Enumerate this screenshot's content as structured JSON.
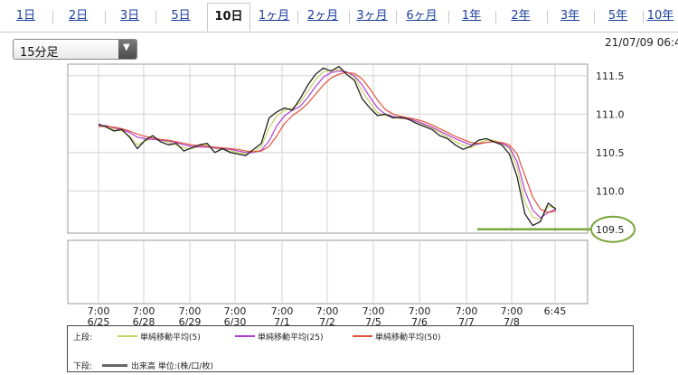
{
  "tabs": [
    "1日",
    "2日",
    "3日",
    "5日",
    "10日",
    "1ヶ月",
    "2ヶ月",
    "3ヶ月",
    "6ヶ月",
    "1年",
    "2年",
    "3年",
    "5年",
    "10年"
  ],
  "active_tab": "10日",
  "interval": {
    "selected": "15分足"
  },
  "datetime": "21/07/09 06:4",
  "colors": {
    "ma5": "#c8d264",
    "ma25": "#b13ed2",
    "ma50": "#e0533a",
    "volume": "#666666",
    "highlight": "#7aa63c",
    "price": "#222222"
  },
  "legend": {
    "upper_label": "上段:",
    "lower_label": "下段:",
    "ma5": "単純移動平均(5)",
    "ma25": "単純移動平均(25)",
    "ma50": "単純移動平均(50)",
    "volume": "出来高 単位:(株/口/枚)"
  },
  "chart_data": {
    "type": "line",
    "y_ticks": [
      "111.5",
      "111.0",
      "110.5",
      "110.0",
      "109.5"
    ],
    "ylim": [
      109.45,
      111.65
    ],
    "highlighted_value": "109.5",
    "x_ticks": [
      {
        "time": "7:00",
        "date": "6/25"
      },
      {
        "time": "7:00",
        "date": "6/28"
      },
      {
        "time": "7:00",
        "date": "6/29"
      },
      {
        "time": "7:00",
        "date": "6/30"
      },
      {
        "time": "7:00",
        "date": "7/1"
      },
      {
        "time": "7:00",
        "date": "7/2"
      },
      {
        "time": "7:00",
        "date": "7/5"
      },
      {
        "time": "7:00",
        "date": "7/6"
      },
      {
        "time": "7:00",
        "date": "7/7"
      },
      {
        "time": "7:00",
        "date": "7/8"
      },
      {
        "time": "6:45",
        "date": ""
      }
    ],
    "series": [
      {
        "name": "単純移動平均(5)",
        "values": [
          110.86,
          110.84,
          110.8,
          110.78,
          110.72,
          110.6,
          110.65,
          110.68,
          110.66,
          110.63,
          110.6,
          110.56,
          110.55,
          110.58,
          110.6,
          110.55,
          110.54,
          110.52,
          110.5,
          110.48,
          110.51,
          110.58,
          110.82,
          110.98,
          111.05,
          111.08,
          111.15,
          111.3,
          111.45,
          111.55,
          111.57,
          111.58,
          111.55,
          111.48,
          111.3,
          111.15,
          111.02,
          110.98,
          110.96,
          110.94,
          110.95,
          110.9,
          110.86,
          110.82,
          110.76,
          110.7,
          110.64,
          110.6,
          110.56,
          110.62,
          110.66,
          110.66,
          110.62,
          110.55,
          110.3,
          109.85,
          109.66,
          109.62,
          109.8,
          109.78
        ]
      },
      {
        "name": "単純移動平均(25)",
        "values": [
          110.85,
          110.85,
          110.82,
          110.8,
          110.76,
          110.7,
          110.68,
          110.67,
          110.66,
          110.65,
          110.63,
          110.6,
          110.58,
          110.57,
          110.57,
          110.56,
          110.55,
          110.54,
          110.52,
          110.5,
          110.5,
          110.53,
          110.65,
          110.85,
          110.98,
          111.05,
          111.1,
          111.22,
          111.36,
          111.48,
          111.54,
          111.56,
          111.55,
          111.5,
          111.38,
          111.22,
          111.08,
          111.0,
          110.97,
          110.95,
          110.94,
          110.91,
          110.87,
          110.83,
          110.78,
          110.73,
          110.68,
          110.64,
          110.6,
          110.61,
          110.63,
          110.64,
          110.62,
          110.57,
          110.38,
          110.0,
          109.75,
          109.65,
          109.72,
          109.76
        ]
      },
      {
        "name": "単純移動平均(50)",
        "values": [
          110.84,
          110.84,
          110.83,
          110.81,
          110.78,
          110.74,
          110.71,
          110.69,
          110.67,
          110.66,
          110.64,
          110.62,
          110.6,
          110.59,
          110.58,
          110.57,
          110.56,
          110.55,
          110.54,
          110.52,
          110.51,
          110.52,
          110.58,
          110.72,
          110.88,
          110.98,
          111.05,
          111.14,
          111.26,
          111.38,
          111.47,
          111.52,
          111.54,
          111.53,
          111.46,
          111.33,
          111.18,
          111.06,
          111.0,
          110.97,
          110.95,
          110.93,
          110.9,
          110.86,
          110.81,
          110.76,
          110.71,
          110.67,
          110.63,
          110.62,
          110.63,
          110.64,
          110.63,
          110.6,
          110.48,
          110.2,
          109.92,
          109.76,
          109.72,
          109.74
        ]
      },
      {
        "name": "",
        "values": [
          110.87,
          110.83,
          110.78,
          110.8,
          110.7,
          110.55,
          110.66,
          110.72,
          110.64,
          110.6,
          110.62,
          110.52,
          110.56,
          110.6,
          110.62,
          110.5,
          110.55,
          110.5,
          110.48,
          110.46,
          110.54,
          110.62,
          110.95,
          111.03,
          111.08,
          111.05,
          111.2,
          111.38,
          111.52,
          111.6,
          111.56,
          111.62,
          111.52,
          111.44,
          111.2,
          111.08,
          110.98,
          111.0,
          110.95,
          110.96,
          110.93,
          110.88,
          110.84,
          110.8,
          110.72,
          110.68,
          110.6,
          110.54,
          110.58,
          110.66,
          110.68,
          110.64,
          110.6,
          110.48,
          110.18,
          109.7,
          109.55,
          109.6,
          109.84,
          109.76
        ]
      }
    ]
  }
}
